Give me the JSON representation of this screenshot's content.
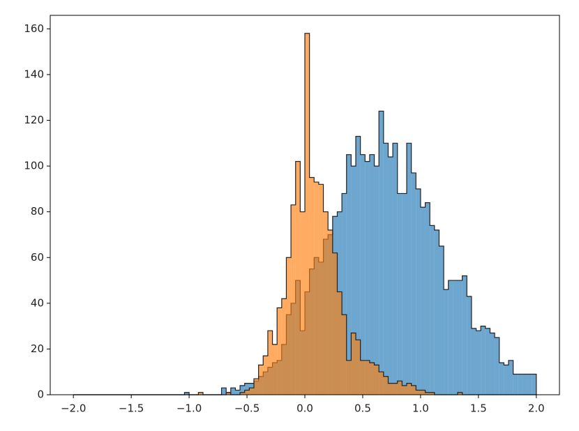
{
  "chart_data": {
    "type": "histogram",
    "bins": [
      -2,
      -1.96,
      -1.92,
      -1.88,
      -1.84,
      -1.8,
      -1.76,
      -1.72,
      -1.68,
      -1.64,
      -1.6,
      -1.56,
      -1.52,
      -1.48,
      -1.44,
      -1.4,
      -1.36,
      -1.32,
      -1.28,
      -1.24,
      -1.2,
      -1.16,
      -1.12,
      -1.08,
      -1.04,
      -1,
      -0.96,
      -0.92,
      -0.88,
      -0.84,
      -0.8,
      -0.76,
      -0.72,
      -0.68,
      -0.64,
      -0.6,
      -0.56,
      -0.52,
      -0.48,
      -0.44,
      -0.4,
      -0.36,
      -0.32,
      -0.28,
      -0.24,
      -0.2,
      -0.16,
      -0.12,
      -0.08,
      -0.04,
      0,
      0.04,
      0.08,
      0.12,
      0.16,
      0.2,
      0.24,
      0.28,
      0.32,
      0.36,
      0.4,
      0.44,
      0.48,
      0.52,
      0.56,
      0.6,
      0.64,
      0.68,
      0.72,
      0.76,
      0.8,
      0.84,
      0.88,
      0.92,
      0.96,
      1,
      1.04,
      1.08,
      1.12,
      1.16,
      1.2,
      1.24,
      1.28,
      1.32,
      1.36,
      1.4,
      1.44,
      1.48,
      1.52,
      1.56,
      1.6,
      1.64,
      1.68,
      1.72,
      1.76,
      1.8,
      1.84,
      1.88,
      1.92,
      1.96,
      2
    ],
    "series": [
      {
        "color": "#1f77b4",
        "values": [
          0,
          0,
          0,
          0,
          0,
          0,
          0,
          0,
          0,
          0,
          0,
          0,
          0,
          0,
          0,
          0,
          0,
          0,
          0,
          0,
          0,
          0,
          0,
          0,
          1,
          0,
          0,
          0,
          0,
          0,
          0,
          0,
          3,
          1,
          3,
          2,
          4,
          5,
          5,
          6,
          8,
          10,
          12,
          14,
          15,
          22,
          35,
          40,
          50,
          28,
          45,
          55,
          60,
          58,
          68,
          70,
          78,
          80,
          88,
          105,
          100,
          113,
          105,
          102,
          105,
          100,
          124,
          110,
          104,
          110,
          88,
          88,
          110,
          97,
          90,
          82,
          84,
          74,
          72,
          65,
          46,
          50,
          50,
          50,
          52,
          43,
          29,
          28,
          30,
          29,
          27,
          25,
          14,
          13,
          15,
          9,
          9,
          9,
          9,
          9
        ]
      },
      {
        "color": "#ff7f0e",
        "values": [
          0,
          0,
          0,
          0,
          0,
          0,
          0,
          0,
          0,
          0,
          0,
          0,
          0,
          0,
          0,
          0,
          0,
          0,
          0,
          0,
          0,
          0,
          0,
          0,
          0,
          0,
          0,
          1,
          0,
          0,
          0,
          0,
          0,
          1,
          0,
          0,
          1,
          2,
          3,
          7,
          13,
          17,
          28,
          22,
          38,
          42,
          60,
          83,
          102,
          80,
          158,
          95,
          93,
          92,
          80,
          72,
          62,
          45,
          35,
          15,
          27,
          24,
          15,
          15,
          14,
          13,
          10,
          8,
          5,
          5,
          6,
          4,
          5,
          4,
          2,
          2,
          1,
          1,
          0,
          0,
          0,
          0,
          0,
          1,
          0,
          0,
          0,
          0,
          0,
          0,
          0,
          0,
          0,
          0,
          0,
          0,
          0,
          0,
          0,
          0
        ]
      }
    ],
    "alpha": 0.65,
    "edgecolor": "#222222",
    "xlim": [
      -2.2,
      2.2
    ],
    "ylim": [
      0,
      165.9
    ],
    "xticks": [
      {
        "value": -2,
        "label": "−2.0"
      },
      {
        "value": -1.5,
        "label": "−1.5"
      },
      {
        "value": -1,
        "label": "−1.0"
      },
      {
        "value": -0.5,
        "label": "−0.5"
      },
      {
        "value": 0,
        "label": "0.0"
      },
      {
        "value": 0.5,
        "label": "0.5"
      },
      {
        "value": 1,
        "label": "1.0"
      },
      {
        "value": 1.5,
        "label": "1.5"
      },
      {
        "value": 2,
        "label": "2.0"
      }
    ],
    "yticks": [
      0,
      20,
      40,
      60,
      80,
      100,
      120,
      140,
      160
    ]
  }
}
